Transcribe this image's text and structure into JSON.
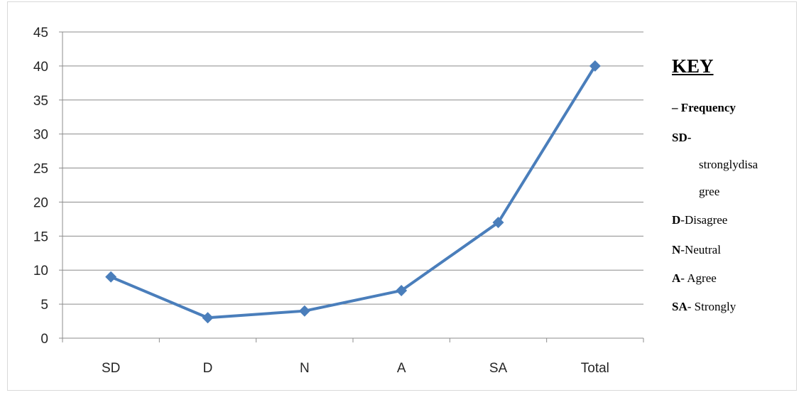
{
  "chart_data": {
    "type": "line",
    "categories": [
      "SD",
      "D",
      "N",
      "A",
      "SA",
      "Total"
    ],
    "series": [
      {
        "values": [
          9,
          3,
          4,
          7,
          17,
          40
        ],
        "color": "#4a7ebb"
      }
    ],
    "ylim": [
      0,
      45
    ],
    "yticks": [
      0,
      5,
      10,
      15,
      20,
      25,
      30,
      35,
      40,
      45
    ],
    "grid": "horizontal",
    "marker": "diamond"
  },
  "key": {
    "title": "KEY",
    "entries": [
      {
        "bold": "– Frequency",
        "text": ""
      },
      {
        "bold": "SD-",
        "text": ""
      },
      {
        "bold": "",
        "text": "stronglydisa"
      },
      {
        "bold": "",
        "text": "gree"
      },
      {
        "bold": "D",
        "text": "-Disagree"
      },
      {
        "bold": "N",
        "text": "-Neutral"
      },
      {
        "bold": "A",
        "text": "- Agree"
      },
      {
        "bold": "SA",
        "text": "- Strongly"
      }
    ]
  }
}
